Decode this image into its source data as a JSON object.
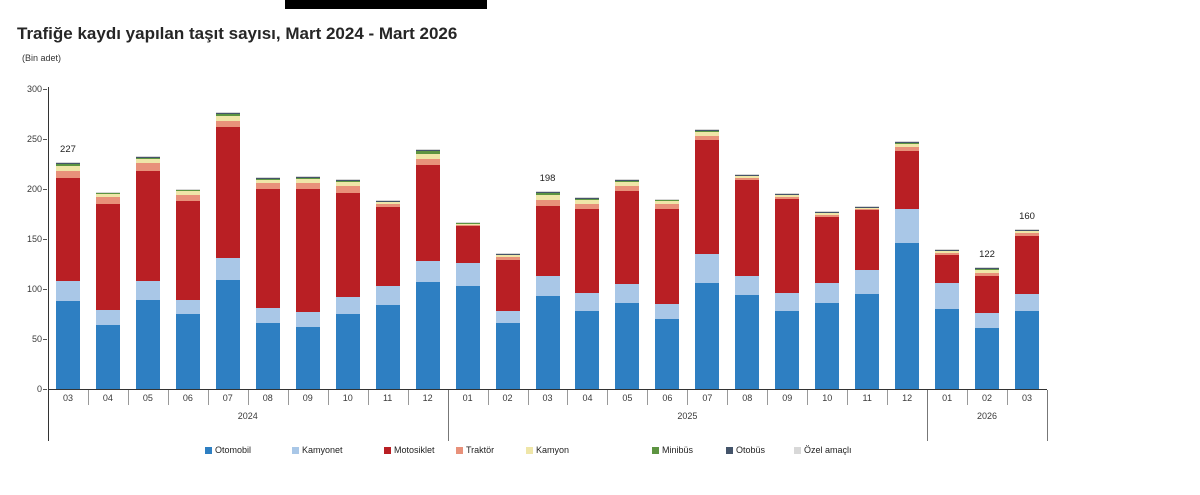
{
  "page": {
    "title": "Trafiğe kaydı yapılan taşıt sayısı, Mart 2024 - Mart 2026",
    "unit_label": "(Bin adet)"
  },
  "chart_data": {
    "type": "bar",
    "stacked": true,
    "title": "Trafiğe kaydı yapılan taşıt sayısı, Mart 2024 - Mart 2026",
    "subtitle": "(Bin adet)",
    "ylabel": "Bin adet",
    "ylim": [
      0,
      300
    ],
    "yticks": [
      0,
      50,
      100,
      150,
      200,
      250,
      300
    ],
    "grid": false,
    "legend_position": "bottom",
    "series": [
      {
        "name": "Otomobil",
        "color": "#2e7fc2"
      },
      {
        "name": "Kamyonet",
        "color": "#a9c7e7"
      },
      {
        "name": "Motosiklet",
        "color": "#b91f24"
      },
      {
        "name": "Traktör",
        "color": "#e8917a"
      },
      {
        "name": "Kamyon",
        "color": "#efe6a8"
      },
      {
        "name": "Minibüs",
        "color": "#5d9441"
      },
      {
        "name": "Otobüs",
        "color": "#44546a"
      },
      {
        "name": "Özel amaçlı",
        "color": "#d8d8d8"
      }
    ],
    "year_groups": [
      {
        "label": "2024",
        "count": 10
      },
      {
        "label": "2025",
        "count": 12
      },
      {
        "label": "2026",
        "count": 3
      }
    ],
    "months": [
      {
        "month": "03",
        "year": "2024",
        "values": [
          88,
          20,
          103,
          7,
          5,
          2,
          1,
          1
        ],
        "label": "227"
      },
      {
        "month": "04",
        "year": "2024",
        "values": [
          64,
          15,
          106,
          7,
          3,
          1.5,
          0.3,
          0.2
        ],
        "label": ""
      },
      {
        "month": "05",
        "year": "2024",
        "values": [
          89,
          19,
          110,
          8,
          4,
          2,
          0.5,
          0.5
        ],
        "label": ""
      },
      {
        "month": "06",
        "year": "2024",
        "values": [
          75,
          14,
          99,
          6,
          4,
          1.5,
          0.3,
          0.2
        ],
        "label": ""
      },
      {
        "month": "07",
        "year": "2024",
        "values": [
          109,
          22,
          131,
          6,
          5,
          3,
          0.5,
          0.5
        ],
        "label": ""
      },
      {
        "month": "08",
        "year": "2024",
        "values": [
          66,
          15,
          119,
          6,
          3,
          2,
          0.5,
          0.5
        ],
        "label": ""
      },
      {
        "month": "09",
        "year": "2024",
        "values": [
          62,
          15,
          123,
          6,
          4,
          2,
          0.5,
          0.5
        ],
        "label": ""
      },
      {
        "month": "10",
        "year": "2024",
        "values": [
          75,
          17,
          104,
          7,
          4,
          2,
          0.5,
          0.5
        ],
        "label": ""
      },
      {
        "month": "11",
        "year": "2024",
        "values": [
          84,
          19,
          79,
          3,
          2,
          1,
          0.5,
          0.5
        ],
        "label": ""
      },
      {
        "month": "12",
        "year": "2024",
        "values": [
          107,
          21,
          96,
          6,
          5,
          3,
          1,
          1
        ],
        "label": ""
      },
      {
        "month": "01",
        "year": "2025",
        "values": [
          103,
          23,
          37,
          1.5,
          1,
          1,
          0.3,
          0.2
        ],
        "label": ""
      },
      {
        "month": "02",
        "year": "2025",
        "values": [
          66,
          12,
          51,
          3,
          2,
          1,
          0.5,
          0.5
        ],
        "label": ""
      },
      {
        "month": "03",
        "year": "2025",
        "values": [
          93,
          20,
          70,
          6,
          5,
          2,
          1,
          1
        ],
        "label": "198"
      },
      {
        "month": "04",
        "year": "2025",
        "values": [
          78,
          18,
          84,
          5,
          4,
          2,
          0.5,
          0.5
        ],
        "label": ""
      },
      {
        "month": "05",
        "year": "2025",
        "values": [
          86,
          19,
          93,
          5,
          4,
          2,
          0.5,
          0.5
        ],
        "label": ""
      },
      {
        "month": "06",
        "year": "2025",
        "values": [
          70,
          15,
          95,
          5,
          3,
          1.5,
          0.3,
          0.2
        ],
        "label": ""
      },
      {
        "month": "07",
        "year": "2025",
        "values": [
          106,
          29,
          114,
          4,
          4,
          2,
          0.5,
          0.5
        ],
        "label": ""
      },
      {
        "month": "08",
        "year": "2025",
        "values": [
          94,
          19,
          96,
          2,
          2,
          1,
          0.5,
          0.5
        ],
        "label": ""
      },
      {
        "month": "09",
        "year": "2025",
        "values": [
          78,
          18,
          94,
          2,
          2,
          1,
          0.5,
          0.5
        ],
        "label": ""
      },
      {
        "month": "10",
        "year": "2025",
        "values": [
          86,
          20,
          66,
          2,
          2,
          1,
          0.5,
          0.5
        ],
        "label": ""
      },
      {
        "month": "11",
        "year": "2025",
        "values": [
          95,
          24,
          60,
          1,
          1,
          1,
          0.5,
          0.5
        ],
        "label": ""
      },
      {
        "month": "12",
        "year": "2025",
        "values": [
          146,
          34,
          58,
          4,
          3,
          2,
          0.5,
          0.5
        ],
        "label": ""
      },
      {
        "month": "01",
        "year": "2026",
        "values": [
          80,
          26,
          28,
          2,
          2,
          1,
          0.5,
          0.5
        ],
        "label": ""
      },
      {
        "month": "02",
        "year": "2026",
        "values": [
          61,
          15,
          37,
          3,
          3,
          2,
          0.5,
          0.5
        ],
        "label": "122"
      },
      {
        "month": "03",
        "year": "2026",
        "values": [
          78,
          17,
          58,
          3,
          2,
          1,
          0.5,
          0.5
        ],
        "label": "160"
      }
    ]
  }
}
